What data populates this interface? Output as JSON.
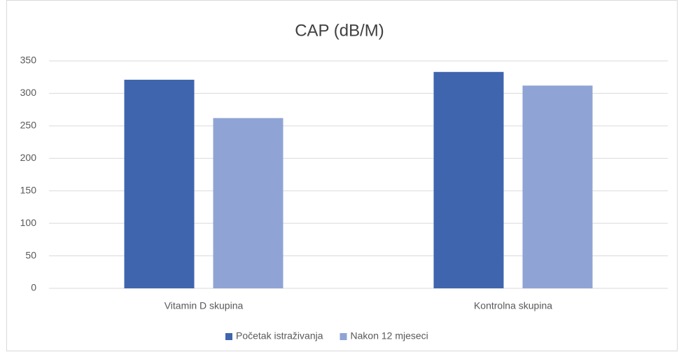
{
  "chart_data": {
    "type": "bar",
    "title": "CAP (dB/M)",
    "categories": [
      "Vitamin D skupina",
      "Kontrolna skupina"
    ],
    "series": [
      {
        "name": "Početak istraživanja",
        "color": "#3f65ae",
        "values": [
          321,
          333
        ]
      },
      {
        "name": "Nakon 12 mjeseci",
        "color": "#8fa4d4",
        "values": [
          262,
          312
        ]
      }
    ],
    "ylim": [
      0,
      350
    ],
    "yticks": [
      0,
      50,
      100,
      150,
      200,
      250,
      300,
      350
    ],
    "grid": true,
    "legend": "bottom"
  }
}
